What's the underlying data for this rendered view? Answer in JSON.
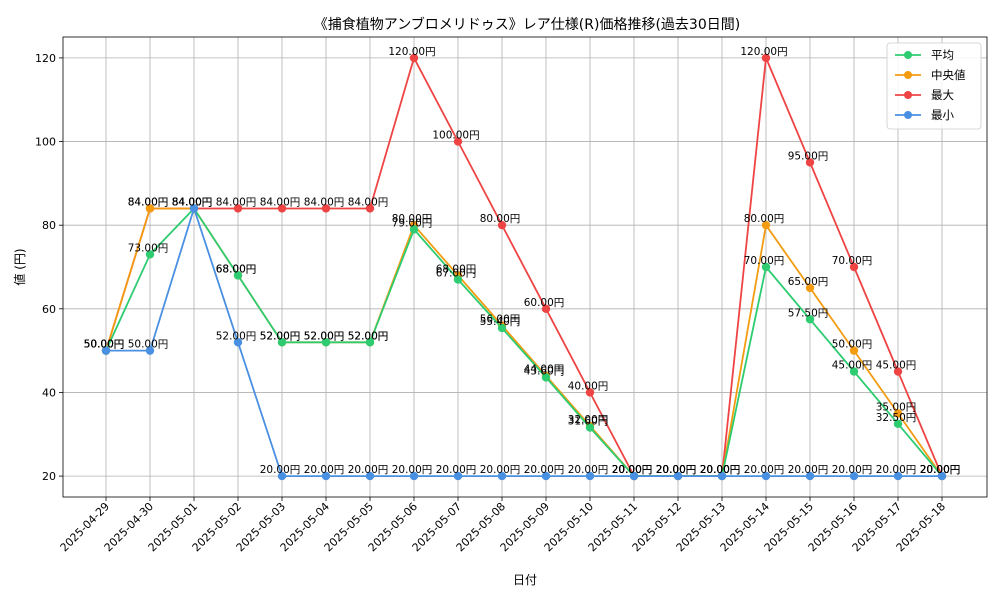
{
  "chart_data": {
    "type": "line",
    "title": "《捕食植物アンブロメリドゥス》レア仕様(R)価格推移(過去30日間)",
    "xlabel": "日付",
    "ylabel": "値 (円)",
    "ylim": [
      15,
      125
    ],
    "yticks": [
      20,
      40,
      60,
      80,
      100,
      120
    ],
    "grid": true,
    "legend_position": "top-right",
    "value_suffix": "円",
    "categories": [
      "2025-04-29",
      "2025-04-30",
      "2025-05-01",
      "2025-05-02",
      "2025-05-03",
      "2025-05-04",
      "2025-05-05",
      "2025-05-06",
      "2025-05-07",
      "2025-05-08",
      "2025-05-09",
      "2025-05-10",
      "2025-05-11",
      "2025-05-12",
      "2025-05-13",
      "2025-05-14",
      "2025-05-15",
      "2025-05-16",
      "2025-05-17",
      "2025-05-18"
    ],
    "series": [
      {
        "name": "平均",
        "color": "#2ecc71",
        "values": [
          50,
          73,
          84,
          68,
          52,
          52,
          52,
          79,
          67,
          55.4,
          43.6,
          31.6,
          20,
          20,
          20,
          70,
          57.5,
          45,
          32.5,
          20
        ]
      },
      {
        "name": "中央値",
        "color": "#f39c12",
        "values": [
          50,
          84,
          84,
          68,
          52,
          52,
          52,
          80,
          68,
          56,
          44,
          32,
          20,
          20,
          20,
          80,
          65,
          50,
          35,
          20
        ]
      },
      {
        "name": "最大",
        "color": "#ef4444",
        "values": [
          50,
          84,
          84,
          84,
          84,
          84,
          84,
          120,
          100,
          80,
          60,
          40,
          20,
          20,
          20,
          120,
          95,
          70,
          45,
          20
        ]
      },
      {
        "name": "最小",
        "color": "#4a90e2",
        "values": [
          50,
          50,
          84,
          52,
          20,
          20,
          20,
          20,
          20,
          20,
          20,
          20,
          20,
          20,
          20,
          20,
          20,
          20,
          20,
          20
        ]
      }
    ]
  }
}
